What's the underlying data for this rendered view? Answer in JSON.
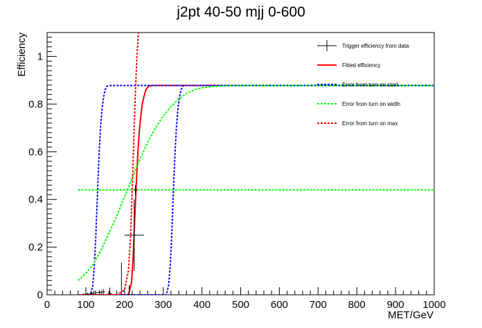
{
  "chart_data": {
    "type": "line",
    "title": "j2pt 40-50 mjj 0-600",
    "xlabel": "MET/GeV",
    "ylabel": "Efficiency",
    "xlim": [
      0,
      1000
    ],
    "ylim": [
      0,
      1.1
    ],
    "x_ticks": [
      0,
      100,
      200,
      300,
      400,
      500,
      600,
      700,
      800,
      900,
      1000
    ],
    "y_ticks": [
      0,
      0.2,
      0.4,
      0.6,
      0.8,
      1
    ],
    "grid": false,
    "legend_position": "top-right",
    "legend": [
      {
        "label": "Trigger efficiency from data",
        "style": "errorbar",
        "color": "#000000"
      },
      {
        "label": "Fitted efficiency",
        "style": "solid",
        "color": "#ff0000"
      },
      {
        "label": "Error from turn on start",
        "style": "dashed",
        "color": "#0000ff"
      },
      {
        "label": "Error from turn on width",
        "style": "dashed",
        "color": "#00ff00"
      },
      {
        "label": "Error from turn on max",
        "style": "dashed",
        "color": "#ff0000"
      }
    ],
    "data_points": [
      {
        "x": 95,
        "y": 0.0,
        "xerr": 5,
        "yerr": 0.005
      },
      {
        "x": 105,
        "y": 0.003,
        "xerr": 5,
        "yerr": 0.006
      },
      {
        "x": 115,
        "y": 0.005,
        "xerr": 5,
        "yerr": 0.008
      },
      {
        "x": 125,
        "y": 0.008,
        "xerr": 5,
        "yerr": 0.01
      },
      {
        "x": 135,
        "y": 0.01,
        "xerr": 5,
        "yerr": 0.01
      },
      {
        "x": 145,
        "y": 0.012,
        "xerr": 5,
        "yerr": 0.012
      },
      {
        "x": 162,
        "y": 0.005,
        "xerr": 5,
        "yerr": 0.025
      },
      {
        "x": 192,
        "y": 0.0,
        "xerr": 5,
        "yerr": 0.135
      },
      {
        "x": 212,
        "y": 0.0,
        "xerr": 5,
        "yerr": 0.04
      },
      {
        "x": 225,
        "y": 0.25,
        "xerr": 25,
        "yerr": 0.15
      },
      {
        "x": 228,
        "y": 0.44,
        "xerr": 5,
        "yerr": 0.02
      }
    ],
    "series": [
      {
        "name": "Fitted efficiency",
        "color": "#ff0000",
        "dash": false,
        "x": [
          80,
          190,
          210,
          218,
          222,
          226,
          230,
          234,
          238,
          242,
          246,
          250,
          255,
          262,
          270,
          300,
          400,
          500,
          600,
          700,
          800,
          900,
          1000
        ],
        "y": [
          0.0,
          0.0,
          0.0,
          0.05,
          0.15,
          0.3,
          0.45,
          0.58,
          0.68,
          0.75,
          0.8,
          0.83,
          0.86,
          0.875,
          0.878,
          0.878,
          0.878,
          0.878,
          0.878,
          0.878,
          0.878,
          0.878,
          0.878
        ]
      },
      {
        "name": "Error from turn on start (low)",
        "color": "#0000ff",
        "dash": true,
        "x": [
          80,
          112,
          118,
          122,
          126,
          130,
          134,
          138,
          142,
          146,
          150,
          155,
          165,
          200,
          1000
        ],
        "y": [
          0.0,
          0.0,
          0.04,
          0.12,
          0.25,
          0.42,
          0.58,
          0.7,
          0.78,
          0.83,
          0.86,
          0.875,
          0.878,
          0.878,
          0.878
        ]
      },
      {
        "name": "Error from turn on start (high)",
        "color": "#0000ff",
        "dash": true,
        "x": [
          80,
          308,
          314,
          318,
          322,
          326,
          330,
          334,
          338,
          342,
          346,
          350,
          355,
          365,
          400,
          1000
        ],
        "y": [
          0.0,
          0.0,
          0.04,
          0.12,
          0.25,
          0.42,
          0.58,
          0.7,
          0.78,
          0.83,
          0.86,
          0.875,
          0.878,
          0.878,
          0.878,
          0.878
        ]
      },
      {
        "name": "Error from turn on width (wide)",
        "color": "#00ff00",
        "dash": true,
        "x": [
          80,
          100,
          120,
          140,
          160,
          180,
          200,
          220,
          240,
          260,
          280,
          300,
          320,
          340,
          360,
          380,
          400,
          430,
          460,
          500,
          550,
          1000
        ],
        "y": [
          0.06,
          0.09,
          0.13,
          0.19,
          0.26,
          0.33,
          0.41,
          0.49,
          0.57,
          0.64,
          0.7,
          0.75,
          0.79,
          0.82,
          0.845,
          0.86,
          0.868,
          0.874,
          0.877,
          0.878,
          0.878,
          0.878
        ]
      },
      {
        "name": "Error from turn on width (flat)",
        "color": "#00ff00",
        "dash": true,
        "x": [
          80,
          1000
        ],
        "y": [
          0.44,
          0.44
        ]
      },
      {
        "name": "Error from turn on max",
        "color": "#ff0000",
        "dash": true,
        "x": [
          80,
          180,
          200,
          210,
          216,
          220,
          224,
          228,
          232,
          236
        ],
        "y": [
          0.0,
          0.0,
          0.02,
          0.1,
          0.25,
          0.45,
          0.65,
          0.85,
          1.0,
          1.1
        ]
      }
    ]
  }
}
